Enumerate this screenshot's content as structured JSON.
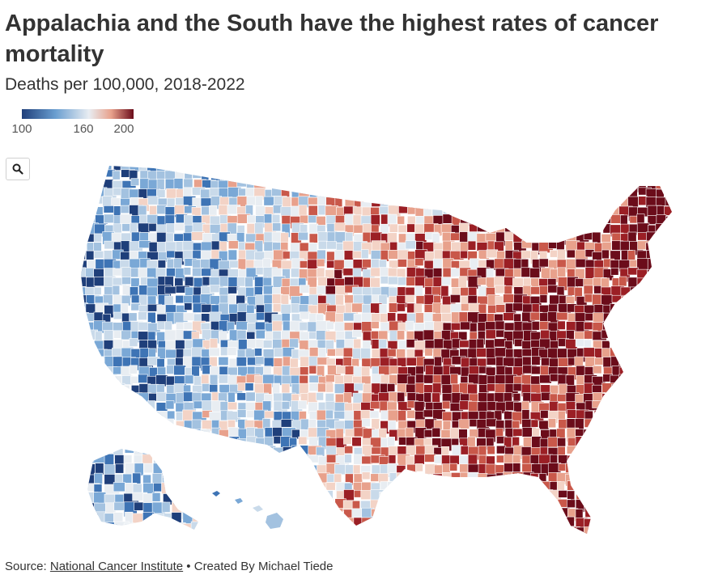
{
  "title": "Appalachia and the South have the highest rates of cancer mortality",
  "subtitle": "Deaths per 100,000, 2018-2022",
  "legend": {
    "ticks": [
      {
        "label": "100",
        "value": 100
      },
      {
        "label": "160",
        "value": 160
      },
      {
        "label": "200",
        "value": 200
      }
    ],
    "min": 100,
    "max": 200,
    "colors": [
      "#1f3f7a",
      "#6a9ed0",
      "#e8edf2",
      "#e8a18c",
      "#6b0c1a"
    ]
  },
  "search": {
    "icon": "search-icon"
  },
  "map": {
    "region": "United States counties",
    "metric": "Cancer mortality, deaths per 100,000, 2018-2022"
  },
  "footer": {
    "prefix": "Source: ",
    "source_link": "National Cancer Institute",
    "separator": " • ",
    "credit": "Created By Michael Tiede"
  }
}
